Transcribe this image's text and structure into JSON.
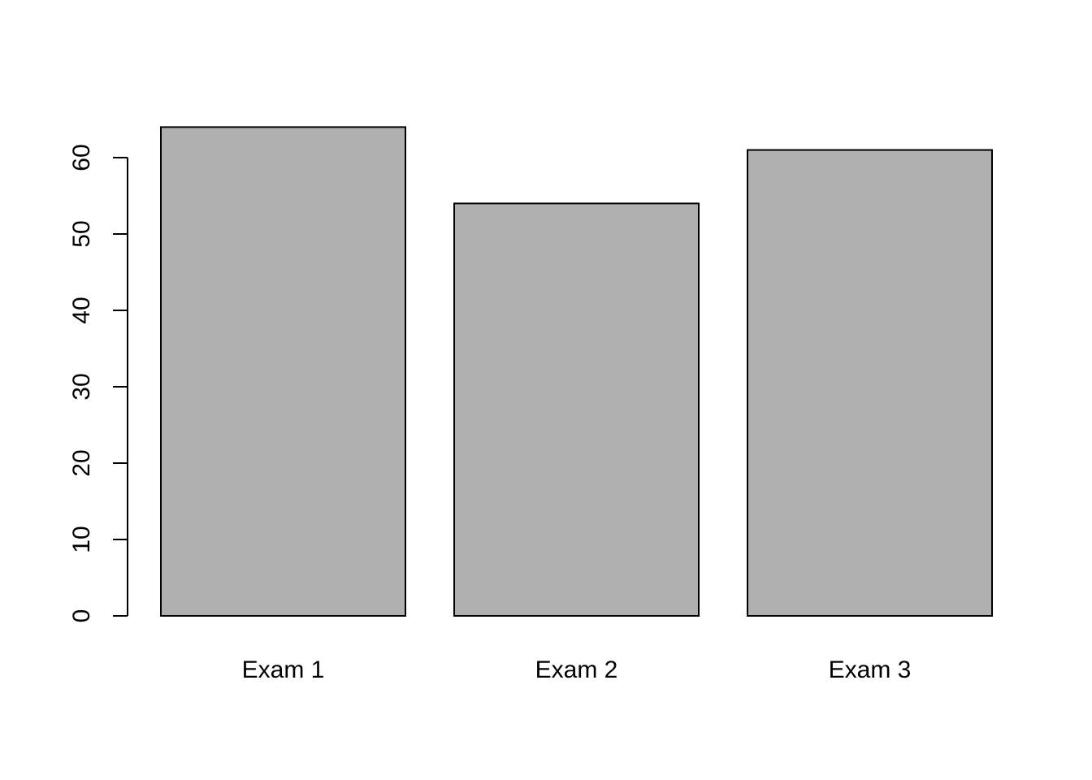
{
  "chart_data": {
    "type": "bar",
    "categories": [
      "Exam 1",
      "Exam 2",
      "Exam 3"
    ],
    "values": [
      64,
      54,
      61
    ],
    "title": "",
    "xlabel": "",
    "ylabel": "",
    "ylim": [
      0,
      64
    ],
    "yticks": [
      0,
      10,
      20,
      30,
      40,
      50,
      60
    ],
    "grid": false,
    "colors": {
      "bar_fill": "#b0b0b0",
      "bar_stroke": "#000000",
      "axis": "#000000",
      "background": "#ffffff"
    }
  }
}
